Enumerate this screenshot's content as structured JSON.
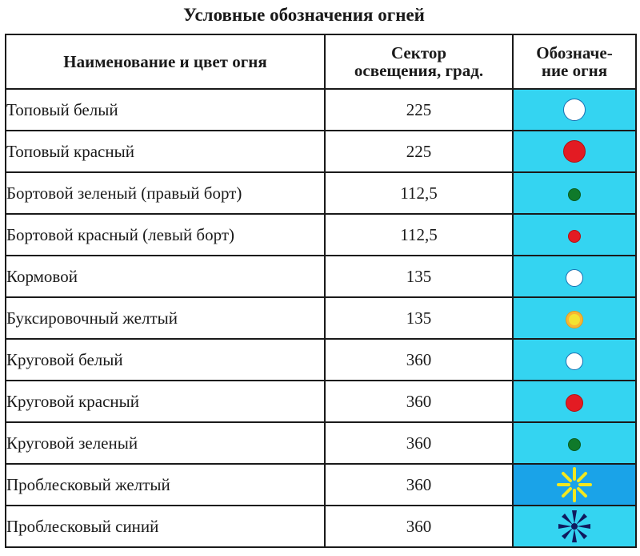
{
  "title": "Условные обозначения огней",
  "headers": {
    "name": "Наименование и цвет огня",
    "sector_line1": "Сектор",
    "sector_line2": "освещения, град.",
    "symbol_line1": "Обозначе-",
    "symbol_line2": "ние огня"
  },
  "rows": [
    {
      "name": "Топовый белый",
      "sector": "225",
      "symbol_icon": "white-dot-icon",
      "symbol_color": "#ffffff"
    },
    {
      "name": "Топовый красный",
      "sector": "225",
      "symbol_icon": "red-dot-icon",
      "symbol_color": "#e31b23"
    },
    {
      "name": "Бортовой зеленый (правый борт)",
      "sector": "112,5",
      "symbol_icon": "green-dot-icon",
      "symbol_color": "#0f7a2a"
    },
    {
      "name": "Бортовой красный (левый борт)",
      "sector": "112,5",
      "symbol_icon": "red-dot-icon",
      "symbol_color": "#e31b23"
    },
    {
      "name": "Кормовой",
      "sector": "135",
      "symbol_icon": "white-dot-icon",
      "symbol_color": "#ffffff"
    },
    {
      "name": "Буксировочный желтый",
      "sector": "135",
      "symbol_icon": "yellow-dot-icon",
      "symbol_color": "#f4e332"
    },
    {
      "name": "Круговой белый",
      "sector": "360",
      "symbol_icon": "white-dot-icon",
      "symbol_color": "#ffffff"
    },
    {
      "name": "Круговой красный",
      "sector": "360",
      "symbol_icon": "red-dot-icon",
      "symbol_color": "#e31b23"
    },
    {
      "name": "Круговой зеленый",
      "sector": "360",
      "symbol_icon": "green-dot-icon",
      "symbol_color": "#0f7a2a"
    },
    {
      "name": "Проблесковый желтый",
      "sector": "360",
      "symbol_icon": "yellow-flash-star-icon",
      "symbol_color": "#f2e81e"
    },
    {
      "name": "Проблесковый синий",
      "sector": "360",
      "symbol_icon": "blue-flash-star-icon",
      "symbol_color": "#101a5e"
    }
  ],
  "colors": {
    "symbol_cell_bg": "#34d4f1",
    "symbol_cell_bg_dark": "#1aa3e8",
    "border": "#1a1a1a"
  }
}
